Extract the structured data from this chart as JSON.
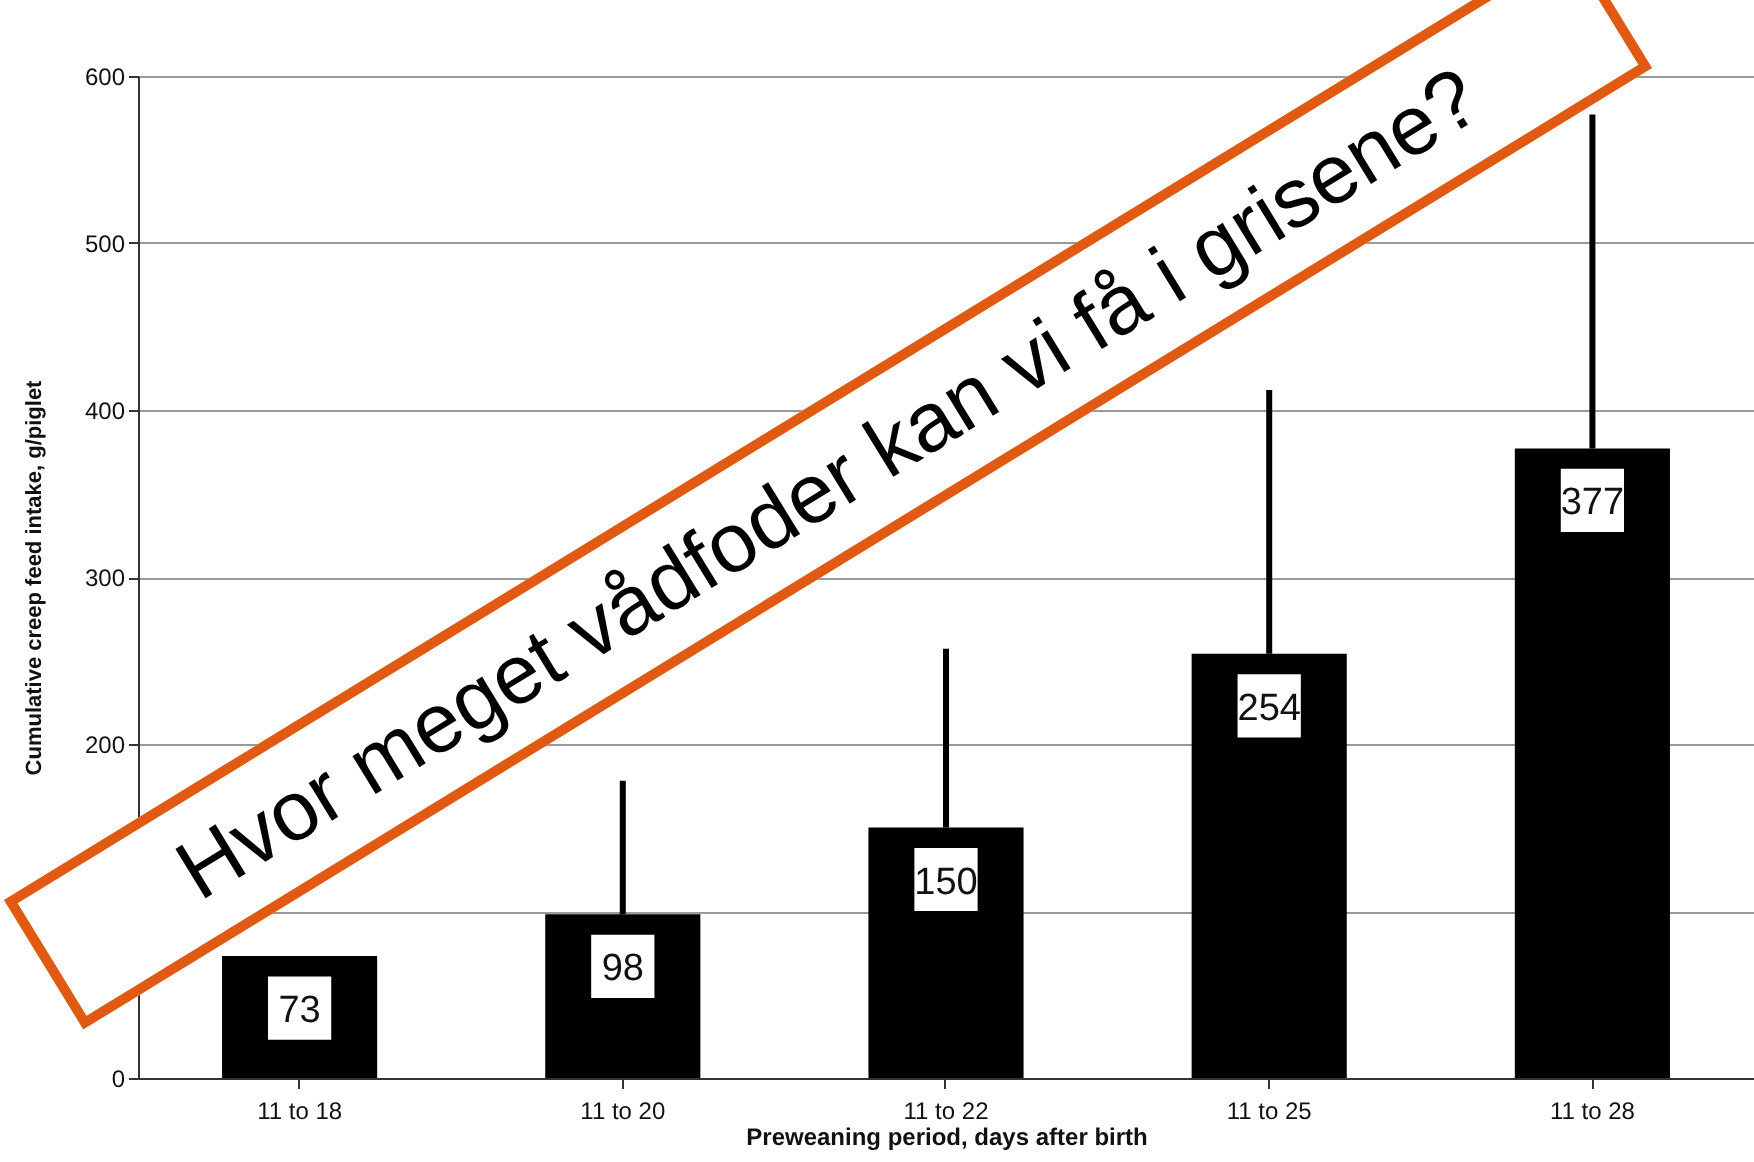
{
  "chart_data": {
    "type": "bar",
    "xlabel": "Preweaning period, days after birth",
    "ylabel": "Cumulative creep feed intake, g/piglet",
    "categories": [
      "11 to 18",
      "11 to 20",
      "11 to 22",
      "11 to 25",
      "11 to 28"
    ],
    "values": [
      73,
      98,
      150,
      254,
      377
    ],
    "color": "#000000",
    "errors": [
      null,
      [
        98,
        178
      ],
      [
        150,
        257
      ],
      [
        254,
        412
      ],
      [
        377,
        577
      ]
    ],
    "data_labels": true,
    "ylim": [
      0,
      600
    ],
    "yticks": [
      0,
      {
        "value": 100,
        "label": null
      },
      200,
      300,
      400,
      500,
      600
    ],
    "grid": "y",
    "annotations": [
      "Hvor meget vådfoder kan vi få i grisene?"
    ]
  }
}
